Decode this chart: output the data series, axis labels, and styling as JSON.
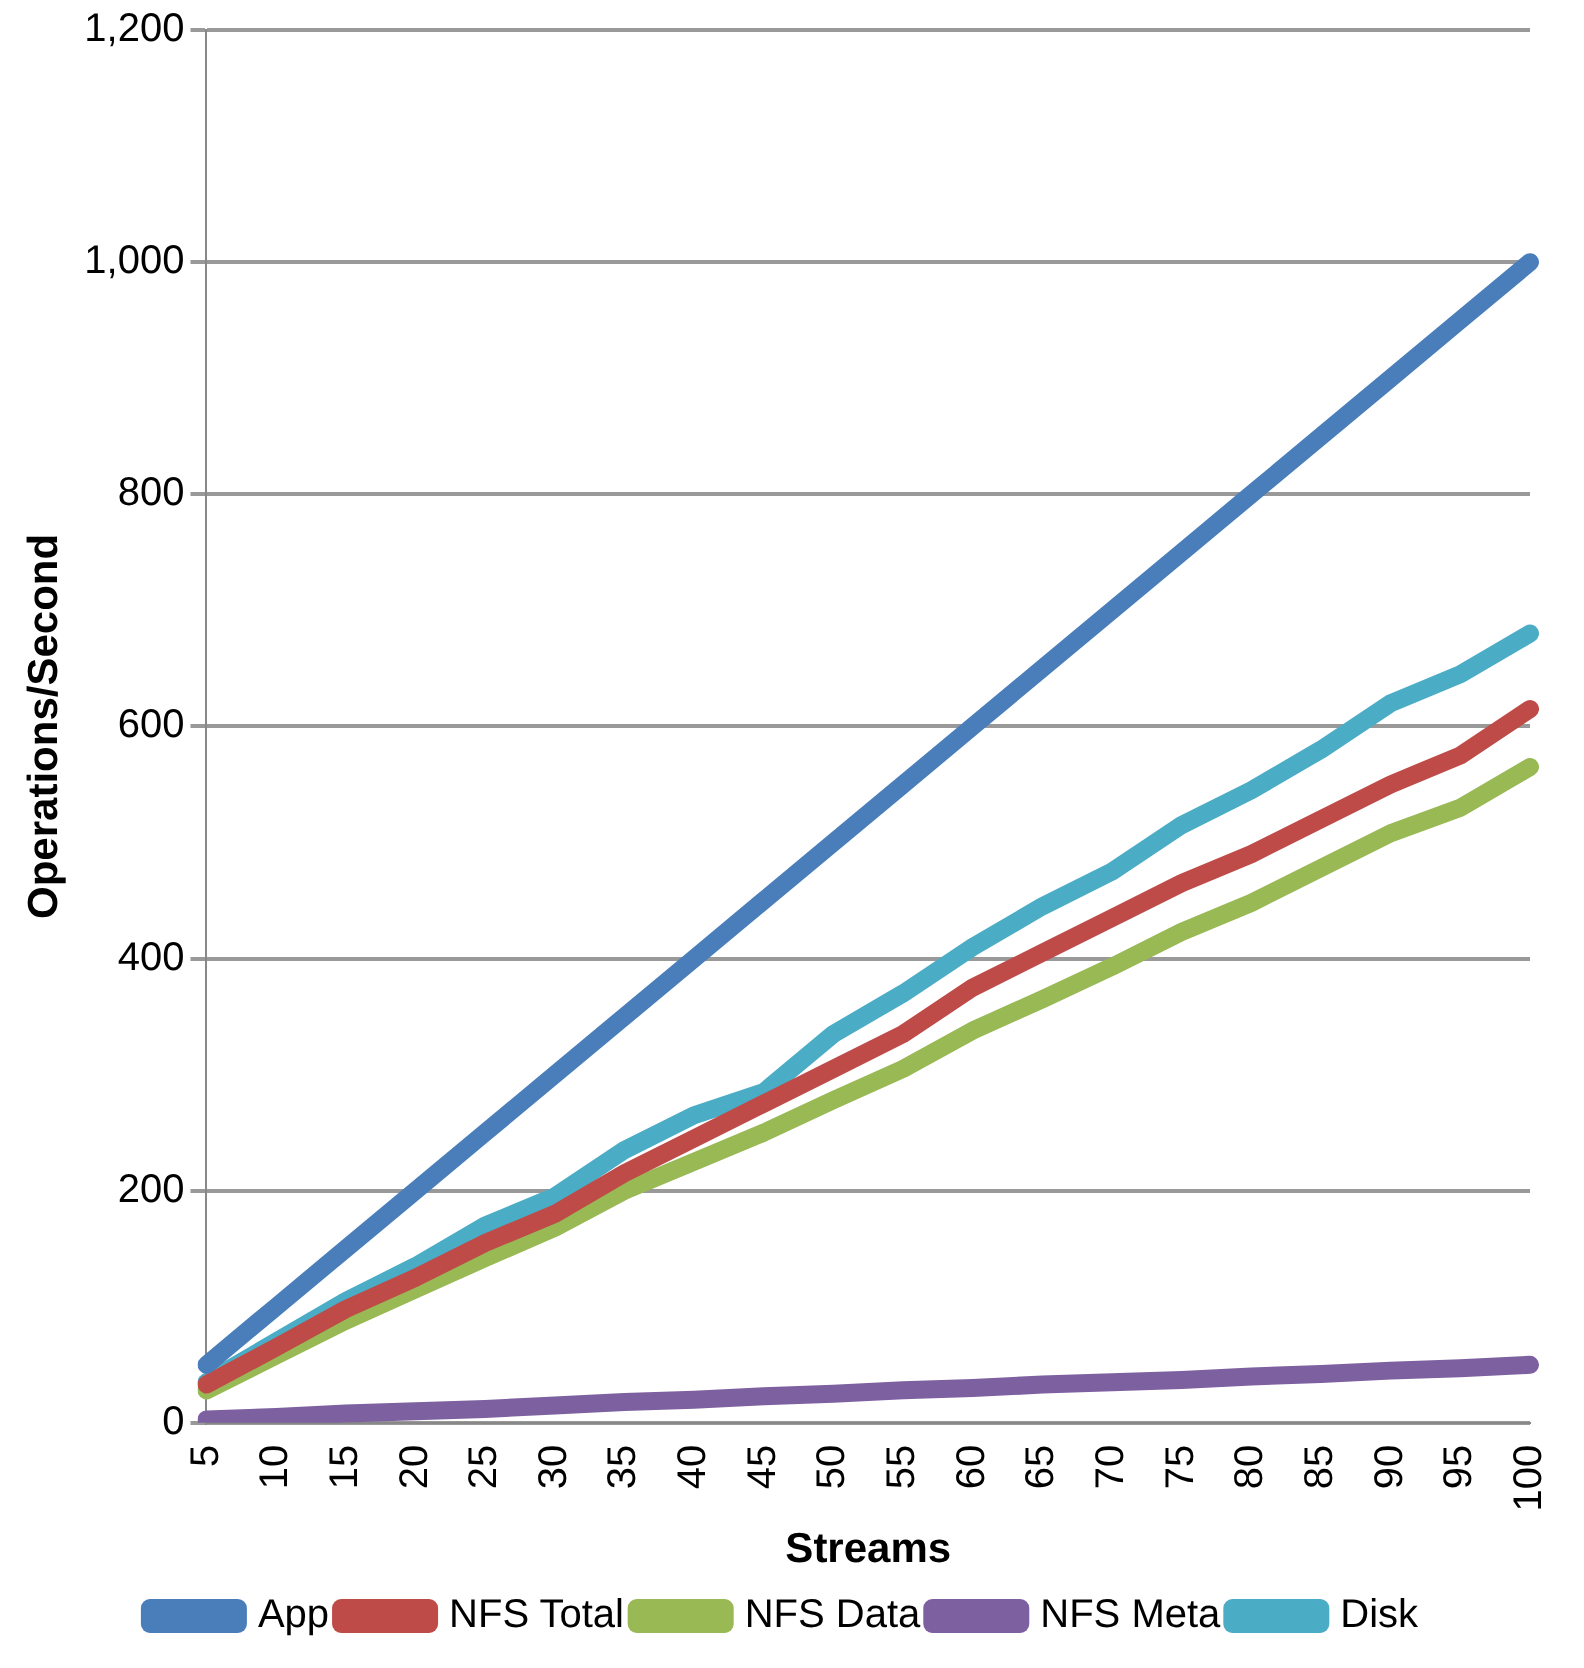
{
  "chart_data": {
    "type": "line",
    "xlabel": "Streams",
    "ylabel": "Operations/Second",
    "categories": [
      "5",
      "10",
      "15",
      "20",
      "25",
      "30",
      "35",
      "40",
      "45",
      "50",
      "55",
      "60",
      "65",
      "70",
      "75",
      "80",
      "85",
      "90",
      "95",
      "100"
    ],
    "series": [
      {
        "name": "App",
        "color": "#4a7ebb",
        "values": [
          50,
          100,
          150,
          200,
          250,
          300,
          350,
          400,
          450,
          500,
          550,
          600,
          650,
          700,
          750,
          800,
          850,
          900,
          950,
          1000
        ]
      },
      {
        "name": "NFS Total",
        "color": "#be4b48",
        "values": [
          33,
          65,
          98,
          125,
          155,
          180,
          215,
          245,
          275,
          305,
          335,
          375,
          405,
          435,
          465,
          490,
          520,
          550,
          575,
          615
        ]
      },
      {
        "name": "NFS Data",
        "color": "#98b954",
        "values": [
          28,
          58,
          88,
          115,
          142,
          168,
          200,
          225,
          250,
          278,
          305,
          338,
          365,
          393,
          423,
          448,
          478,
          508,
          530,
          565
        ]
      },
      {
        "name": "NFS Meta",
        "color": "#7d60a0",
        "values": [
          3,
          5,
          8,
          10,
          12,
          15,
          18,
          20,
          23,
          25,
          28,
          30,
          33,
          35,
          37,
          40,
          42,
          45,
          47,
          50
        ]
      },
      {
        "name": "Disk",
        "color": "#4bacc6",
        "values": [
          35,
          70,
          105,
          135,
          170,
          195,
          235,
          265,
          285,
          335,
          370,
          410,
          445,
          475,
          515,
          545,
          580,
          620,
          645,
          680
        ]
      }
    ],
    "ylim": [
      0,
      1200
    ],
    "yticks": [
      0,
      200,
      400,
      600,
      800,
      {
        "value": 1000,
        "label": "1,000"
      },
      {
        "value": 1200,
        "label": "1,200"
      }
    ],
    "grid": "y",
    "legend": "bottom",
    "marker": "none",
    "line_style": "solid"
  }
}
